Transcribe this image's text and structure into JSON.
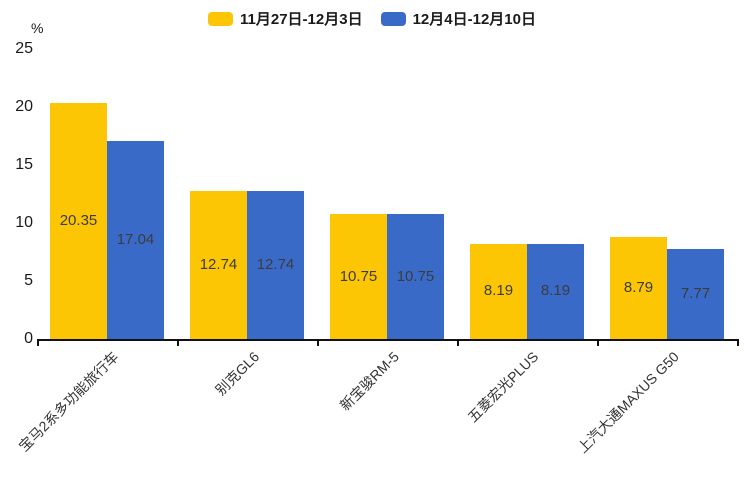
{
  "chart_data": {
    "type": "bar",
    "title": "",
    "ylabel": "%",
    "xlabel": "",
    "ylim": [
      0,
      25
    ],
    "yticks": [
      0,
      5,
      10,
      15,
      20,
      25
    ],
    "grid": false,
    "legend_position": "top",
    "categories": [
      "宝马2系多功能旅行车",
      "别克GL6",
      "新宝骏RM-5",
      "五菱宏光PLUS",
      "上汽大通MAXUS G50"
    ],
    "series": [
      {
        "name": "11月27日-12月3日",
        "color": "#FDC605",
        "values": [
          20.35,
          12.74,
          10.75,
          8.19,
          8.79
        ]
      },
      {
        "name": "12月4日-12月10日",
        "color": "#3A6AC8",
        "values": [
          17.04,
          12.74,
          10.75,
          8.19,
          7.77
        ]
      }
    ],
    "bar_label_color": "#3c3c3c",
    "axis_color": "#111111"
  }
}
